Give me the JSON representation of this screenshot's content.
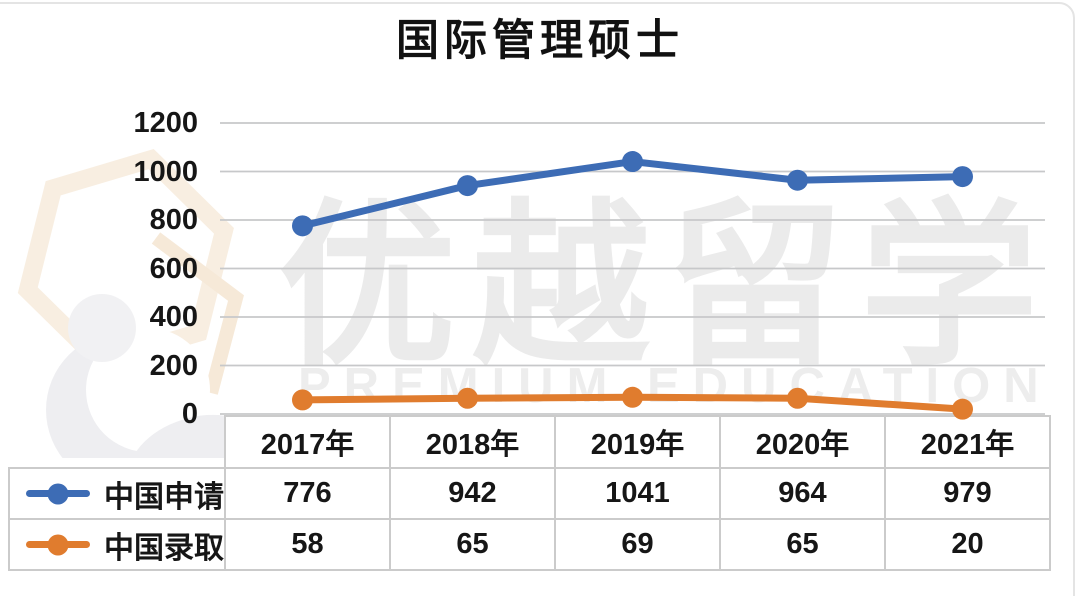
{
  "title": "国际管理硕士",
  "watermark": {
    "cn": "优越留学",
    "en": "PREMIUM EDUCATION"
  },
  "colors": {
    "applications_series": "#3d6cb5",
    "admissions_series": "#e07c2e",
    "gridline": "#c7c8ca",
    "table_border": "#cbcbcb",
    "text": "#161616",
    "watermark_text": "#ebebeb",
    "watermark_logo_orange": "#f6e9d8",
    "watermark_logo_gray": "#e9e9ed"
  },
  "chart_data": {
    "type": "line",
    "title": "国际管理硕士",
    "categories": [
      "2017年",
      "2018年",
      "2019年",
      "2020年",
      "2021年"
    ],
    "series": [
      {
        "name": "中国申请",
        "values": [
          776,
          942,
          1041,
          964,
          979
        ],
        "color": "#3d6cb5"
      },
      {
        "name": "中国录取",
        "values": [
          58,
          65,
          69,
          65,
          20
        ],
        "color": "#e07c2e"
      }
    ],
    "xlabel": "",
    "ylabel": "",
    "ylim": [
      0,
      1200
    ],
    "yticks": [
      1200,
      1000,
      800,
      600,
      400,
      200,
      0
    ],
    "grid": "horizontal",
    "legend_position": "table-left-column",
    "markers": "circle",
    "data_table_shown": true
  }
}
